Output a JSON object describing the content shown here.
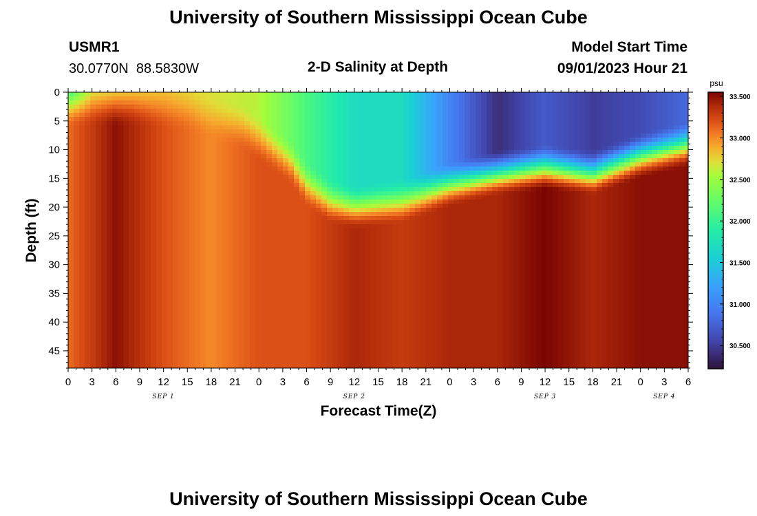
{
  "title": "University of Southern Mississippi Ocean Cube",
  "footer_title": "University of Southern Mississippi Ocean Cube",
  "station": {
    "id": "USMR1",
    "coords": "30.0770N  88.5830W"
  },
  "model_start": {
    "label": "Model Start Time",
    "value": "09/01/2023 Hour 21"
  },
  "chart_data": {
    "type": "heatmap",
    "title": "2-D Salinity at Depth",
    "xlabel": "Forecast Time(Z)",
    "ylabel": "Depth (ft)",
    "colorbar_unit": "psu",
    "x_range_hours": [
      0,
      78
    ],
    "x_tick_step_hours": 3,
    "x_tick_labels": [
      "0",
      "3",
      "6",
      "9",
      "12",
      "15",
      "18",
      "21",
      "0",
      "3",
      "6",
      "9",
      "12",
      "15",
      "18",
      "21",
      "0",
      "3",
      "6",
      "9",
      "12",
      "15",
      "18",
      "21",
      "0",
      "3",
      "6"
    ],
    "day_labels": [
      {
        "label": "SEP 1",
        "hour": 12
      },
      {
        "label": "SEP 2",
        "hour": 36
      },
      {
        "label": "SEP 3",
        "hour": 60
      },
      {
        "label": "SEP 4",
        "hour": 75
      }
    ],
    "y_range_ft": [
      0,
      48
    ],
    "y_ticks": [
      0,
      5,
      10,
      15,
      20,
      25,
      30,
      35,
      40,
      45
    ],
    "colorbar_range": [
      30.22,
      33.55
    ],
    "colorbar_ticks": [
      "33.500",
      "33.000",
      "32.500",
      "32.000",
      "31.500",
      "31.000",
      "30.500"
    ],
    "colorbar_tick_values": [
      33.5,
      33.0,
      32.5,
      32.0,
      31.5,
      31.0,
      30.5
    ],
    "isohaline_depth_ft": [
      {
        "hour": 0,
        "depth": 2
      },
      {
        "hour": 8,
        "depth": 2
      },
      {
        "hour": 15,
        "depth": 3
      },
      {
        "hour": 22,
        "depth": 6
      },
      {
        "hour": 28,
        "depth": 12
      },
      {
        "hour": 30,
        "depth": 16
      },
      {
        "hour": 33,
        "depth": 19
      },
      {
        "hour": 36,
        "depth": 20
      },
      {
        "hour": 42,
        "depth": 19
      },
      {
        "hour": 48,
        "depth": 16
      },
      {
        "hour": 54,
        "depth": 14
      },
      {
        "hour": 60,
        "depth": 13
      },
      {
        "hour": 66,
        "depth": 14
      },
      {
        "hour": 72,
        "depth": 11
      },
      {
        "hour": 78,
        "depth": 9
      }
    ],
    "surface_salinity_psu": [
      {
        "hour": 0,
        "value": 31.9
      },
      {
        "hour": 3,
        "value": 32.6
      },
      {
        "hour": 12,
        "value": 32.8
      },
      {
        "hour": 24,
        "value": 32.6
      },
      {
        "hour": 30,
        "value": 32.1
      },
      {
        "hour": 36,
        "value": 31.7
      },
      {
        "hour": 42,
        "value": 31.7
      },
      {
        "hour": 48,
        "value": 31.0
      },
      {
        "hour": 54,
        "value": 30.4
      },
      {
        "hour": 60,
        "value": 30.7
      },
      {
        "hour": 66,
        "value": 30.5
      },
      {
        "hour": 72,
        "value": 30.6
      },
      {
        "hour": 78,
        "value": 30.8
      }
    ],
    "deep_salinity_psu": [
      {
        "hour": 0,
        "value": 33.1
      },
      {
        "hour": 6,
        "value": 33.5
      },
      {
        "hour": 12,
        "value": 33.2
      },
      {
        "hour": 18,
        "value": 33.0
      },
      {
        "hour": 24,
        "value": 33.2
      },
      {
        "hour": 30,
        "value": 33.2
      },
      {
        "hour": 36,
        "value": 33.4
      },
      {
        "hour": 42,
        "value": 33.3
      },
      {
        "hour": 48,
        "value": 33.4
      },
      {
        "hour": 54,
        "value": 33.4
      },
      {
        "hour": 60,
        "value": 33.55
      },
      {
        "hour": 66,
        "value": 33.4
      },
      {
        "hour": 72,
        "value": 33.5
      },
      {
        "hour": 78,
        "value": 33.5
      }
    ]
  }
}
